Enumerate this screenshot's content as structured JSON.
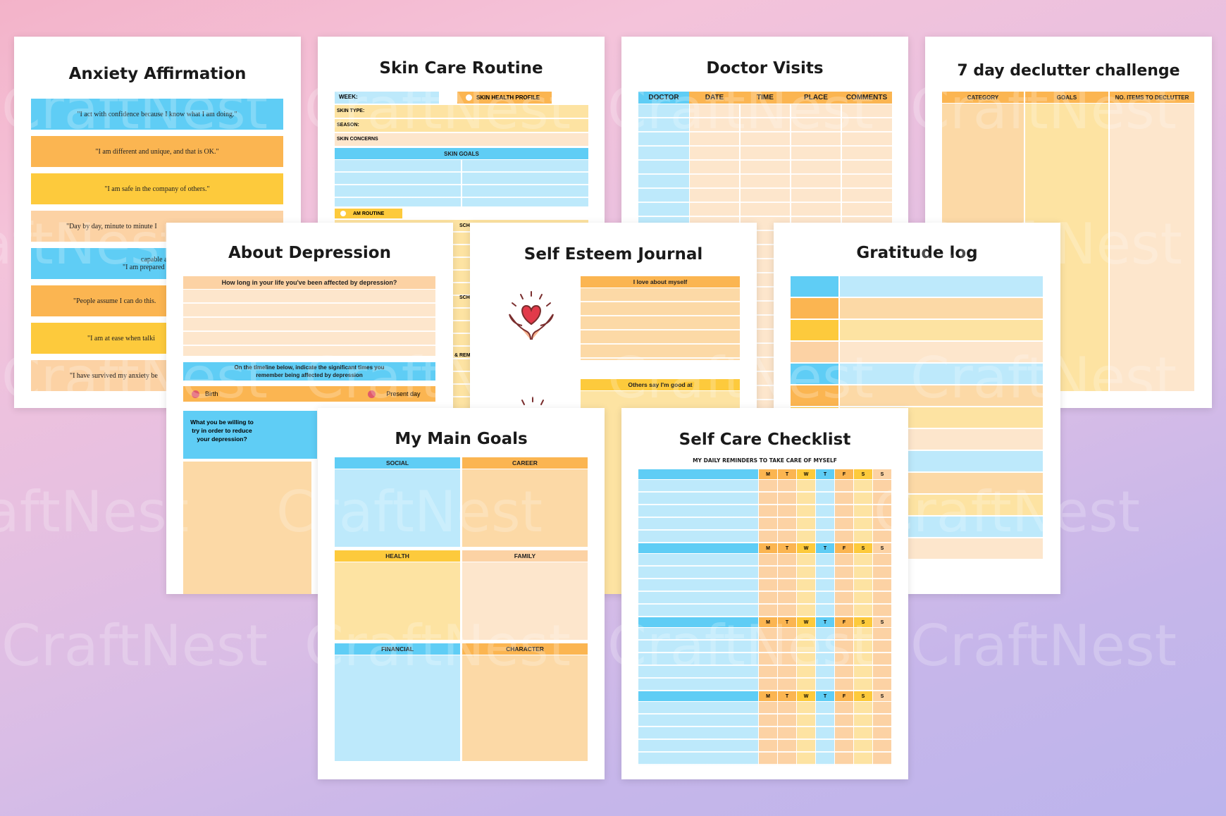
{
  "watermark": "CraftNest",
  "anxiety": {
    "title": "Anxiety Affirmation",
    "items": [
      "\"I act with confidence because I know what I am doing.\"",
      "\"I am different and unique, and that is OK.\"",
      "\"I am safe in the company of others.\"",
      "\"Day by day, minute to minute I",
      "capable and p",
      "\"I am prepared and ready",
      "\"People assume I can do this.",
      "\"I am at ease when talki",
      "\"I have survived my anxiety be"
    ]
  },
  "skincare": {
    "title": "Skin Care Routine",
    "week": "WEEK:",
    "profile": "SKIN HEALTH PROFILE",
    "skin_type": "SKIN TYPE:",
    "season": "SEASON:",
    "concerns": "SKIN CONCERNS",
    "goals": "SKIN GOALS",
    "am_routine": "AM ROUTINE",
    "cut1": "SCH",
    "cut2": "SCH",
    "cut3": "& REM"
  },
  "doctor": {
    "title": "Doctor Visits",
    "columns": [
      "DOCTOR",
      "DATE",
      "TIME",
      "PLACE",
      "COMMENTS"
    ]
  },
  "declutter": {
    "title": "7 day declutter challenge",
    "columns": [
      "CATEGORY",
      "GOALS",
      "NO. ITEMS TO DECLUTTER"
    ]
  },
  "depression": {
    "title": "About Depression",
    "q1": "How long in your life you've been affected by depression?",
    "q2": "On the timeline below, indicate the significant times you remember being affected by depression",
    "birth": "Birth",
    "present": "Present day",
    "q3": "What you be willing to try in order to reduce your depression?"
  },
  "selfesteem": {
    "title": "Self Esteem Journal",
    "love": "I love about myself",
    "others": "Others say I'm good at",
    "icon": "heart-hands-icon"
  },
  "gratitude": {
    "title": "Gratitude log"
  },
  "goals": {
    "title": "My Main Goals",
    "boxes": [
      "SOCIAL",
      "CAREER",
      "HEALTH",
      "FAMILY",
      "FINANCIAL",
      "CHARACTER"
    ]
  },
  "checklist": {
    "title": "Self Care Checklist",
    "subtitle": "MY DAILY REMINDERS TO TAKE CARE OF MYSELF",
    "days": [
      "M",
      "T",
      "W",
      "T",
      "F",
      "S",
      "S"
    ]
  },
  "colors": {
    "blue": "#5fcdf5",
    "light_blue": "#bde9fb",
    "orange": "#fbb551",
    "yellow": "#fdca3c",
    "peach": "#fcd2a4"
  }
}
